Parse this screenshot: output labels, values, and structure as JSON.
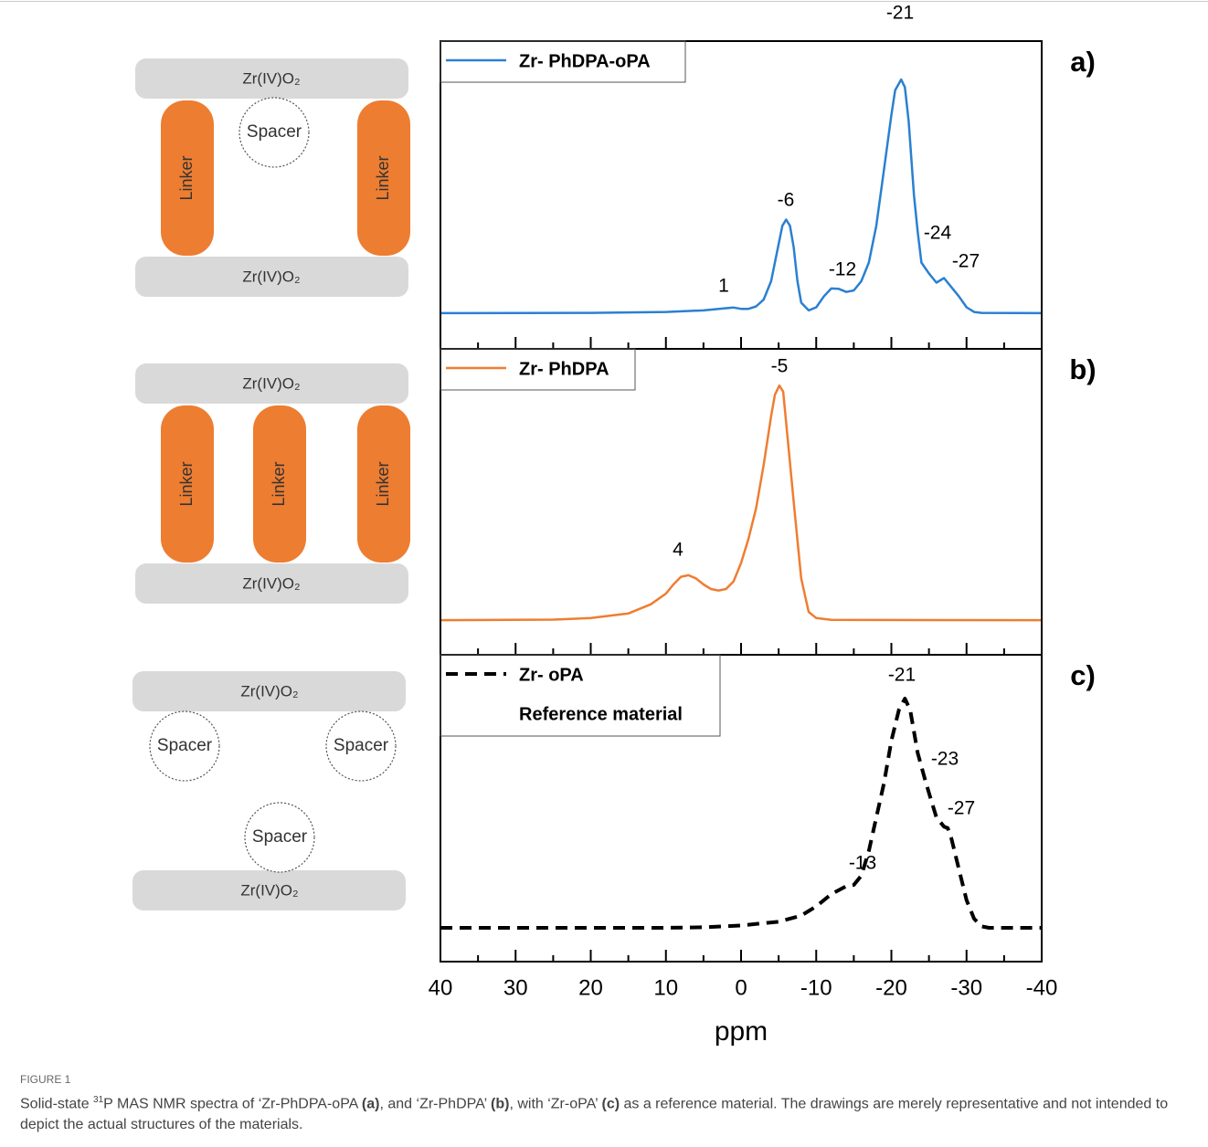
{
  "chart_data": [
    {
      "type": "line",
      "panel_label": "a)",
      "xlim": [
        40,
        -40
      ],
      "ylim": [
        0,
        100
      ],
      "xticks": [
        40,
        30,
        20,
        10,
        0,
        -10,
        -20,
        -30,
        -40
      ],
      "xminorticks": [
        35,
        25,
        15,
        5,
        -5,
        -15,
        -25,
        -35
      ],
      "x": [
        40,
        20,
        10,
        5,
        2,
        1,
        0,
        -1,
        -2,
        -3,
        -4,
        -5,
        -5.5,
        -6,
        -6.5,
        -7,
        -7.5,
        -8,
        -9,
        -10,
        -11,
        -12,
        -13,
        -14,
        -15,
        -16,
        -17,
        -18,
        -19,
        -20,
        -20.5,
        -21.3,
        -21.8,
        -22.3,
        -23,
        -23.5,
        -24,
        -25,
        -26,
        -27,
        -28,
        -29,
        -30,
        -31,
        -32,
        -40
      ],
      "series": [
        {
          "name": "Zr- PhDPA-oPA",
          "color": "#2b80d0",
          "dash": false,
          "values": [
            11.6,
            11.7,
            12,
            12.5,
            13.2,
            13.4,
            13,
            13,
            13.8,
            16,
            22,
            34,
            40,
            42,
            40,
            33,
            22,
            15,
            12.5,
            13.5,
            17,
            19.6,
            19.5,
            18.5,
            19,
            22,
            28,
            40,
            58,
            76,
            84,
            87.5,
            85,
            74,
            50,
            38,
            28,
            24.5,
            21.5,
            23,
            20,
            17,
            13.5,
            12,
            11.7,
            11.6
          ]
        }
      ],
      "annotations": [
        "1",
        "-6",
        "-12",
        "-21",
        "-24",
        "-27"
      ]
    },
    {
      "type": "line",
      "panel_label": "b)",
      "xlim": [
        40,
        -40
      ],
      "ylim": [
        0,
        100
      ],
      "xticks": [
        40,
        30,
        20,
        10,
        0,
        -10,
        -20,
        -30,
        -40
      ],
      "xminorticks": [
        35,
        25,
        15,
        5,
        -5,
        -15,
        -25,
        -35
      ],
      "x": [
        40,
        25,
        20,
        15,
        12,
        10,
        9,
        8,
        7,
        6,
        5,
        4,
        3,
        2,
        1,
        0,
        -1,
        -2,
        -3,
        -4,
        -4.5,
        -5.1,
        -5.6,
        -6,
        -7,
        -8,
        -9,
        -10,
        -12,
        -40
      ],
      "series": [
        {
          "name": "Zr- PhDPA",
          "color": "#ef7d31",
          "dash": false,
          "values": [
            11.3,
            11.5,
            12,
            13.5,
            16.5,
            20,
            23,
            25.5,
            26,
            25,
            23,
            21.5,
            21,
            21.5,
            24,
            30,
            38,
            48,
            62,
            78,
            85,
            88,
            86,
            76,
            50,
            25,
            14,
            12,
            11.4,
            11.3
          ]
        }
      ],
      "annotations": [
        "4",
        "-5"
      ]
    },
    {
      "type": "line",
      "panel_label": "c)",
      "xlim": [
        40,
        -40
      ],
      "ylim": [
        0,
        100
      ],
      "xticks": [
        40,
        30,
        20,
        10,
        0,
        -10,
        -20,
        -30,
        -40
      ],
      "xminorticks": [
        35,
        25,
        15,
        5,
        -5,
        -15,
        -25,
        -35
      ],
      "xlabel": "ppm",
      "legend_subtitle": "Reference material",
      "x": [
        40,
        10,
        5,
        0,
        -5,
        -8,
        -10,
        -12,
        -14,
        -15,
        -16,
        -17,
        -18,
        -19,
        -20,
        -21,
        -21.8,
        -22.5,
        -23.5,
        -24.4,
        -25,
        -26,
        -27,
        -27.5,
        -28,
        -29,
        -30,
        -31,
        -32,
        -33,
        -40
      ],
      "series": [
        {
          "name": "Zr- oPA",
          "color": "#000000",
          "dash": true,
          "values": [
            11,
            11,
            11.2,
            11.8,
            13,
            15,
            18,
            22,
            24.6,
            25,
            28,
            36,
            47,
            58,
            72,
            82,
            85.7,
            82,
            68,
            60,
            55,
            47,
            44,
            43.5,
            40,
            30,
            20,
            14,
            11.5,
            11,
            11
          ]
        }
      ],
      "annotations": [
        "-13",
        "-21",
        "-23",
        "-27"
      ]
    }
  ],
  "diagrams": [
    {
      "labels": [
        "Zr(IV)O₂",
        "Spacer",
        "Linker",
        "Linker",
        "Zr(IV)O₂"
      ]
    },
    {
      "labels": [
        "Zr(IV)O₂",
        "Linker",
        "Linker",
        "Linker",
        "Zr(IV)O₂"
      ]
    },
    {
      "labels": [
        "Zr(IV)O₂",
        "Spacer",
        "Spacer",
        "Spacer",
        "Zr(IV)O₂"
      ]
    }
  ],
  "caption": {
    "label": "FIGURE 1",
    "parts": [
      "Solid-state ",
      "31",
      "P MAS NMR spectra of ‘Zr-PhDPA-oPA ",
      "(a)",
      ", and ‘Zr-PhDPA’ ",
      "(b)",
      ", with ‘Zr-oPA’ ",
      "(c)",
      " as a reference material. The drawings are merely representative and not intended to depict the actual structures of the materials."
    ]
  }
}
